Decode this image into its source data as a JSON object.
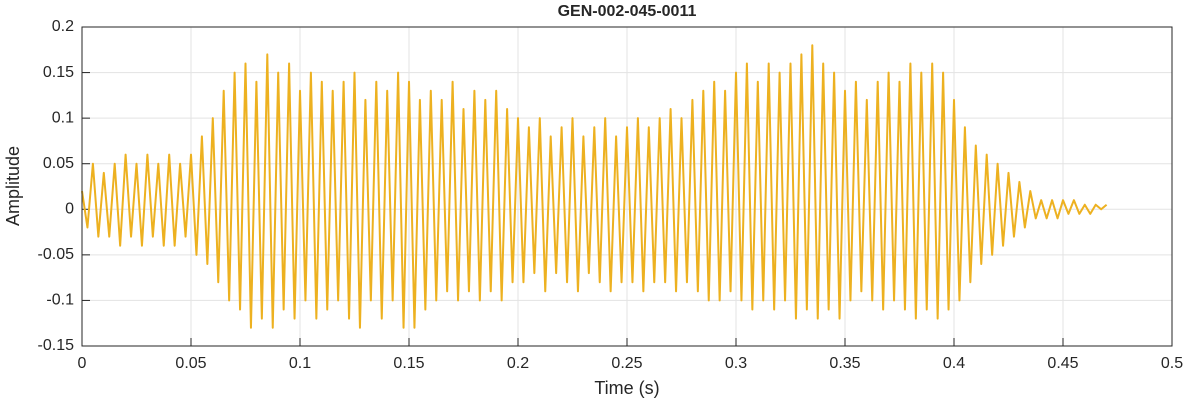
{
  "chart_data": {
    "type": "line",
    "title": "GEN-002-045-0011",
    "x_label": "Time (s)",
    "y_label": "Amplitude",
    "color": "#EDB120",
    "grid": true,
    "xlim": [
      0,
      0.5
    ],
    "xticks": [
      0,
      0.05,
      0.1,
      0.15,
      0.2,
      0.25,
      0.3,
      0.35,
      0.4,
      0.45,
      0.5
    ],
    "ylim": [
      -0.15,
      0.2
    ],
    "yticks": [
      -0.15,
      -0.1,
      -0.05,
      0,
      0.05,
      0.1,
      0.15,
      0.2
    ],
    "x": [
      0,
      0.0025,
      0.005,
      0.0075,
      0.01,
      0.0125,
      0.015,
      0.0175,
      0.02,
      0.0225,
      0.025,
      0.0275,
      0.03,
      0.0325,
      0.035,
      0.0375,
      0.04,
      0.0425,
      0.045,
      0.0475,
      0.05,
      0.0525,
      0.055,
      0.0575,
      0.06,
      0.0625,
      0.065,
      0.0675,
      0.07,
      0.0725,
      0.075,
      0.0775,
      0.08,
      0.0825,
      0.085,
      0.0875,
      0.09,
      0.0925,
      0.095,
      0.0975,
      0.1,
      0.1025,
      0.105,
      0.1075,
      0.11,
      0.1125,
      0.115,
      0.1175,
      0.12,
      0.1225,
      0.125,
      0.1275,
      0.13,
      0.1325,
      0.135,
      0.1375,
      0.14,
      0.1425,
      0.145,
      0.1475,
      0.15,
      0.1525,
      0.155,
      0.1575,
      0.16,
      0.1625,
      0.165,
      0.1675,
      0.17,
      0.1725,
      0.175,
      0.1775,
      0.18,
      0.1825,
      0.185,
      0.1875,
      0.19,
      0.1925,
      0.195,
      0.1975,
      0.2,
      0.2025,
      0.205,
      0.2075,
      0.21,
      0.2125,
      0.215,
      0.2175,
      0.22,
      0.2225,
      0.225,
      0.2275,
      0.23,
      0.2325,
      0.235,
      0.2375,
      0.24,
      0.2425,
      0.245,
      0.2475,
      0.25,
      0.2525,
      0.255,
      0.2575,
      0.26,
      0.2625,
      0.265,
      0.2675,
      0.27,
      0.2725,
      0.275,
      0.2775,
      0.28,
      0.2825,
      0.285,
      0.2875,
      0.29,
      0.2925,
      0.295,
      0.2975,
      0.3,
      0.3025,
      0.305,
      0.3075,
      0.31,
      0.3125,
      0.315,
      0.3175,
      0.32,
      0.3225,
      0.325,
      0.3275,
      0.33,
      0.3325,
      0.335,
      0.3375,
      0.34,
      0.3425,
      0.345,
      0.3475,
      0.35,
      0.3525,
      0.355,
      0.3575,
      0.36,
      0.3625,
      0.365,
      0.3675,
      0.37,
      0.3725,
      0.375,
      0.3775,
      0.38,
      0.3825,
      0.385,
      0.3875,
      0.39,
      0.3925,
      0.395,
      0.3975,
      0.4,
      0.4025,
      0.405,
      0.4075,
      0.41,
      0.4125,
      0.415,
      0.4175,
      0.42,
      0.4225,
      0.425,
      0.4275,
      0.43,
      0.4325,
      0.435,
      0.4375,
      0.44,
      0.4425,
      0.445,
      0.4475,
      0.45,
      0.4525,
      0.455,
      0.4575,
      0.46,
      0.4625,
      0.465,
      0.4675,
      0.47
    ],
    "values": [
      0.02,
      -0.02,
      0.05,
      -0.03,
      0.04,
      -0.03,
      0.05,
      -0.04,
      0.06,
      -0.03,
      0.05,
      -0.04,
      0.06,
      -0.03,
      0.05,
      -0.04,
      0.06,
      -0.04,
      0.05,
      -0.03,
      0.06,
      -0.05,
      0.08,
      -0.06,
      0.1,
      -0.08,
      0.13,
      -0.1,
      0.15,
      -0.11,
      0.16,
      -0.13,
      0.14,
      -0.12,
      0.17,
      -0.13,
      0.15,
      -0.11,
      0.16,
      -0.12,
      0.13,
      -0.1,
      0.15,
      -0.12,
      0.14,
      -0.11,
      0.13,
      -0.1,
      0.14,
      -0.12,
      0.15,
      -0.13,
      0.12,
      -0.1,
      0.14,
      -0.12,
      0.13,
      -0.1,
      0.15,
      -0.13,
      0.14,
      -0.13,
      0.12,
      -0.11,
      0.13,
      -0.1,
      0.12,
      -0.09,
      0.14,
      -0.1,
      0.11,
      -0.09,
      0.13,
      -0.1,
      0.12,
      -0.09,
      0.13,
      -0.1,
      0.11,
      -0.08,
      0.1,
      -0.08,
      0.09,
      -0.07,
      0.1,
      -0.09,
      0.08,
      -0.07,
      0.09,
      -0.08,
      0.1,
      -0.09,
      0.08,
      -0.07,
      0.09,
      -0.08,
      0.1,
      -0.09,
      0.08,
      -0.08,
      0.09,
      -0.08,
      0.1,
      -0.09,
      0.09,
      -0.08,
      0.1,
      -0.08,
      0.11,
      -0.09,
      0.1,
      -0.08,
      0.12,
      -0.09,
      0.13,
      -0.1,
      0.14,
      -0.1,
      0.13,
      -0.09,
      0.15,
      -0.1,
      0.16,
      -0.11,
      0.14,
      -0.1,
      0.16,
      -0.11,
      0.15,
      -0.1,
      0.16,
      -0.12,
      0.17,
      -0.11,
      0.18,
      -0.12,
      0.16,
      -0.11,
      0.15,
      -0.12,
      0.13,
      -0.1,
      0.14,
      -0.09,
      0.12,
      -0.1,
      0.14,
      -0.11,
      0.15,
      -0.1,
      0.14,
      -0.11,
      0.16,
      -0.12,
      0.15,
      -0.11,
      0.16,
      -0.12,
      0.15,
      -0.11,
      0.12,
      -0.1,
      0.09,
      -0.08,
      0.07,
      -0.06,
      0.06,
      -0.05,
      0.05,
      -0.04,
      0.04,
      -0.03,
      0.03,
      -0.02,
      0.02,
      -0.01,
      0.01,
      -0.01,
      0.01,
      -0.01,
      0.01,
      -0.005,
      0.01,
      -0.005,
      0.005,
      -0.005,
      0.005,
      0,
      0.005
    ]
  }
}
